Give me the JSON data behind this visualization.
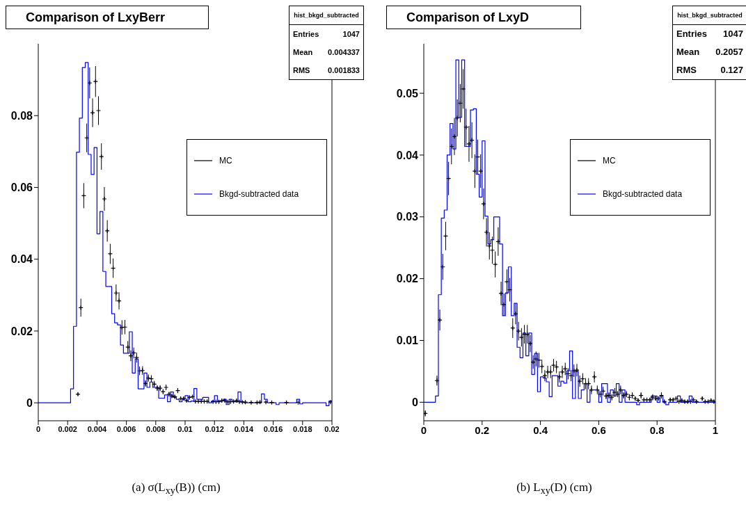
{
  "chart_data": [
    {
      "type": "step",
      "title": "Comparison of LxyBerr",
      "xlabel": "(a) σ(L$_{xy}$(B)) (cm)",
      "annotations": [
        "hist_bkgd_subtracted",
        "Entries",
        "1047",
        "Mean",
        "0.004337",
        "RMS",
        "0.001833"
      ],
      "xlim": [
        0,
        0.02
      ],
      "xticks": [
        0,
        0.002,
        0.004,
        0.006,
        0.008,
        0.01,
        0.012,
        0.014,
        0.016,
        0.018,
        0.02
      ],
      "ylim": [
        -0.005,
        0.1
      ],
      "yticks": [
        0,
        0.02,
        0.04,
        0.06,
        0.08
      ],
      "legend": "right",
      "series": [
        {
          "name": "MC",
          "type": "scatter",
          "marker": "cross",
          "color": "#000000",
          "x": [
            0.0027,
            0.0029,
            0.0031,
            0.0033,
            0.0035,
            0.0037,
            0.0039,
            0.0041,
            0.0043,
            0.0045,
            0.0047,
            0.0049,
            0.0051,
            0.0053,
            0.0055,
            0.0057,
            0.0059,
            0.0061,
            0.0063,
            0.0065,
            0.0067,
            0.0069,
            0.0071,
            0.0073,
            0.0075,
            0.0077,
            0.0079,
            0.0081,
            0.0083,
            0.0085,
            0.0087,
            0.0089,
            0.0091,
            0.0093,
            0.0095,
            0.0097,
            0.0099,
            0.0101,
            0.0103,
            0.0105,
            0.0107,
            0.0109,
            0.0111,
            0.0113,
            0.0115,
            0.0119,
            0.0121,
            0.0123,
            0.0125,
            0.0127,
            0.0129,
            0.0131,
            0.0133,
            0.0135,
            0.0137,
            0.0139,
            0.0141,
            0.0145,
            0.0149,
            0.0151,
            0.0155,
            0.0159,
            0.0169,
            0.0177,
            0.0199
          ],
          "values": [
            0.0024,
            0.0265,
            0.0577,
            0.0738,
            0.0891,
            0.0808,
            0.0895,
            0.0814,
            0.0686,
            0.0568,
            0.0479,
            0.0415,
            0.0375,
            0.0306,
            0.0284,
            0.021,
            0.0211,
            0.0155,
            0.0131,
            0.0139,
            0.0126,
            0.0089,
            0.009,
            0.0054,
            0.0069,
            0.0067,
            0.0052,
            0.0041,
            0.0041,
            0.0031,
            0.0043,
            0.0024,
            0.0019,
            0.0017,
            0.0034,
            0.0012,
            0.0012,
            0.0006,
            0.0015,
            0.0017,
            0.0004,
            0.0004,
            0.0004,
            0.0004,
            0.0004,
            0.0003,
            0.0003,
            0.0003,
            0.0006,
            0.0006,
            0.0003,
            0.0003,
            0.0004,
            0.0006,
            0.0003,
            0.0002,
            0.0002,
            0.0001,
            0.0001,
            0.0002,
            0.0002,
            0.0001,
            0.0001,
            0.0001,
            0.0002
          ],
          "errors": [
            0.0004,
            0.0025,
            0.0035,
            0.004,
            0.0043,
            0.004,
            0.0043,
            0.004,
            0.0037,
            0.0033,
            0.003,
            0.0028,
            0.0027,
            0.0024,
            0.0024,
            0.002,
            0.002,
            0.0017,
            0.0015,
            0.0015,
            0.0014,
            0.0012,
            0.0012,
            0.0009,
            0.001,
            0.001,
            0.0009,
            0.0008,
            0.0008,
            0.0007,
            0.0008,
            0.0006,
            0.0005,
            0.0005,
            0.0007,
            0.0004,
            0.0004,
            0.0003,
            0.0005,
            0.0005,
            0.0002,
            0.0002,
            0.0002,
            0.0002,
            0.0002,
            0.0002,
            0.0002,
            0.0002,
            0.0003,
            0.0003,
            0.0002,
            0.0002,
            0.0002,
            0.0003,
            0.0002,
            0.0002,
            0.0002,
            0.0002,
            0.0002,
            0.0002,
            0.0002,
            0.0002,
            0.0002,
            0.0002,
            0.0002
          ]
        },
        {
          "name": "Bkgd-subtracted data",
          "color": "#0000ff",
          "x": [
            0,
            0.0022,
            0.0024,
            0.0026,
            0.0028,
            0.003,
            0.0032,
            0.0034,
            0.0036,
            0.0038,
            0.004,
            0.0042,
            0.0044,
            0.0046,
            0.0048,
            0.005,
            0.0052,
            0.0054,
            0.0056,
            0.0058,
            0.006,
            0.0062,
            0.0064,
            0.0066,
            0.0068,
            0.007,
            0.0072,
            0.0074,
            0.0076,
            0.0078,
            0.008,
            0.0082,
            0.0084,
            0.0086,
            0.0088,
            0.009,
            0.0092,
            0.0094,
            0.0096,
            0.0098,
            0.01,
            0.0102,
            0.0104,
            0.0106,
            0.0108,
            0.0112,
            0.0116,
            0.0118,
            0.012,
            0.0122,
            0.0126,
            0.0128,
            0.013,
            0.0132,
            0.0136,
            0.0138,
            0.014,
            0.0152,
            0.0154,
            0.0156,
            0.0162,
            0.0164,
            0.0176,
            0.0178,
            0.018,
            0.0196,
            0.0198,
            0.02
          ],
          "values": [
            0,
            0.0039,
            0.0213,
            0.0698,
            0.0793,
            0.0934,
            0.0948,
            0.0692,
            0.0636,
            0.0711,
            0.0471,
            0.0533,
            0.0366,
            0.0324,
            0.0324,
            0.0248,
            0.0223,
            0.0217,
            0.0161,
            0.0138,
            0.0138,
            0.0198,
            0.0083,
            0.0122,
            0.0039,
            0.0039,
            0.0083,
            0.0043,
            0.0058,
            0.0043,
            0.0043,
            0.0013,
            0.0013,
            0.0022,
            0.0003,
            0.003,
            0.0015,
            0.001,
            0.0003,
            0.001,
            0.002,
            0.0003,
            0.0005,
            0.004,
            0.001,
            0.0015,
            0,
            0.0005,
            0.002,
            0.0005,
            0.001,
            -0.0005,
            0.001,
            0.0003,
            0.003,
            0.0003,
            0,
            0.0025,
            0.001,
            0,
            -0.0005,
            0,
            0.001,
            -0.0003,
            0,
            -0.0008,
            0.0005,
            0.0005
          ]
        }
      ]
    },
    {
      "type": "step",
      "title": "Comparison of LxyD",
      "xlabel": "(b) L$_{xy}$(D) (cm)",
      "annotations": [
        "hist_bkgd_subtracted",
        "Entries",
        "1047",
        "Mean",
        "0.2057",
        "RMS",
        "0.127"
      ],
      "xlim": [
        0,
        1
      ],
      "xticks": [
        0,
        0.2,
        0.4,
        0.6,
        0.8,
        1
      ],
      "ylim": [
        -0.003,
        0.058
      ],
      "yticks": [
        0,
        0.01,
        0.02,
        0.03,
        0.04,
        0.05
      ],
      "legend": "right",
      "series": [
        {
          "name": "MC",
          "type": "scatter",
          "marker": "cross",
          "color": "#000000",
          "x": [
            0.005,
            0.045,
            0.055,
            0.065,
            0.075,
            0.085,
            0.095,
            0.105,
            0.115,
            0.125,
            0.135,
            0.145,
            0.155,
            0.165,
            0.175,
            0.185,
            0.195,
            0.205,
            0.215,
            0.225,
            0.235,
            0.245,
            0.255,
            0.265,
            0.275,
            0.285,
            0.295,
            0.305,
            0.315,
            0.325,
            0.335,
            0.345,
            0.355,
            0.365,
            0.375,
            0.385,
            0.395,
            0.405,
            0.415,
            0.425,
            0.435,
            0.445,
            0.455,
            0.465,
            0.475,
            0.485,
            0.495,
            0.505,
            0.515,
            0.525,
            0.535,
            0.545,
            0.555,
            0.565,
            0.575,
            0.585,
            0.595,
            0.605,
            0.615,
            0.625,
            0.635,
            0.645,
            0.655,
            0.665,
            0.675,
            0.685,
            0.695,
            0.705,
            0.715,
            0.725,
            0.735,
            0.745,
            0.755,
            0.765,
            0.775,
            0.785,
            0.795,
            0.805,
            0.815,
            0.825,
            0.845,
            0.855,
            0.865,
            0.875,
            0.885,
            0.895,
            0.905,
            0.915,
            0.925,
            0.935,
            0.955,
            0.965,
            0.975,
            0.985,
            0.995
          ],
          "values": [
            -0.0018,
            0.0035,
            0.0133,
            0.0219,
            0.0269,
            0.0362,
            0.0414,
            0.043,
            0.046,
            0.0484,
            0.0507,
            0.0445,
            0.0418,
            0.0424,
            0.0374,
            0.0397,
            0.0374,
            0.0321,
            0.0275,
            0.0253,
            0.0246,
            0.0223,
            0.026,
            0.0176,
            0.0158,
            0.0195,
            0.0182,
            0.012,
            0.0143,
            0.0115,
            0.0105,
            0.011,
            0.011,
            0.0095,
            0.0065,
            0.007,
            0.0068,
            0.0058,
            0.0043,
            0.0049,
            0.0049,
            0.006,
            0.0057,
            0.0041,
            0.0049,
            0.0054,
            0.0046,
            0.0043,
            0.0051,
            0.0052,
            0.0034,
            0.0038,
            0.003,
            0.003,
            0.002,
            0.0041,
            0.002,
            0.0013,
            0.0018,
            0.001,
            0.0011,
            0.0008,
            0.0016,
            0.0013,
            0.002,
            0.0011,
            0.0013,
            0.0008,
            0.0011,
            0.0006,
            0.0003,
            0.0011,
            0.0004,
            0.0004,
            0.0004,
            0.0008,
            0.0006,
            0.0006,
            0.0011,
            0.0001,
            0.0004,
            0.0004,
            0.0006,
            0.0001,
            0.0003,
            0.0001,
            0.0001,
            0.0001,
            0.0004,
            0.0001,
            0.0006,
            0.0001,
            0.0001,
            0.0003,
            0.0001
          ],
          "errors": [
            0.0005,
            0.0008,
            0.0017,
            0.0021,
            0.0023,
            0.0027,
            0.0029,
            0.003,
            0.003,
            0.0031,
            0.0032,
            0.003,
            0.0029,
            0.0029,
            0.0027,
            0.0028,
            0.0027,
            0.0025,
            0.0023,
            0.0022,
            0.0022,
            0.0021,
            0.0023,
            0.0019,
            0.0018,
            0.002,
            0.0019,
            0.0016,
            0.0017,
            0.0015,
            0.0015,
            0.0015,
            0.0015,
            0.0014,
            0.0011,
            0.0012,
            0.0012,
            0.0011,
            0.0009,
            0.001,
            0.001,
            0.001,
            0.001,
            0.0009,
            0.001,
            0.001,
            0.0009,
            0.0009,
            0.001,
            0.001,
            0.0009,
            0.0009,
            0.0009,
            0.0009,
            0.0007,
            0.0009,
            0.0007,
            0.0005,
            0.0007,
            0.0005,
            0.0005,
            0.0005,
            0.0007,
            0.0005,
            0.0007,
            0.0005,
            0.0005,
            0.0005,
            0.0005,
            0.0003,
            0.0003,
            0.0005,
            0.0003,
            0.0003,
            0.0003,
            0.0005,
            0.0003,
            0.0003,
            0.0005,
            0.0003,
            0.0003,
            0.0003,
            0.0003,
            0.0003,
            0.0003,
            0.0003,
            0.0003,
            0.0003,
            0.0003,
            0.0003,
            0.0003,
            0.0003,
            0.0003,
            0.0003,
            0.0003
          ]
        },
        {
          "name": "Bkgd-subtracted data",
          "color": "#0000ff",
          "x": [
            0,
            0.04,
            0.05,
            0.06,
            0.07,
            0.08,
            0.09,
            0.1,
            0.11,
            0.12,
            0.13,
            0.14,
            0.15,
            0.16,
            0.17,
            0.18,
            0.19,
            0.2,
            0.21,
            0.22,
            0.23,
            0.24,
            0.25,
            0.26,
            0.27,
            0.28,
            0.29,
            0.3,
            0.31,
            0.32,
            0.33,
            0.34,
            0.35,
            0.36,
            0.37,
            0.38,
            0.39,
            0.4,
            0.41,
            0.42,
            0.43,
            0.44,
            0.45,
            0.46,
            0.47,
            0.48,
            0.49,
            0.5,
            0.51,
            0.52,
            0.53,
            0.54,
            0.55,
            0.56,
            0.57,
            0.58,
            0.59,
            0.6,
            0.61,
            0.62,
            0.63,
            0.64,
            0.65,
            0.66,
            0.67,
            0.68,
            0.69,
            0.73,
            0.74,
            0.78,
            0.8,
            0.81,
            0.82,
            0.83,
            0.84,
            0.87,
            0.88,
            0.91,
            0.92,
            1
          ],
          "values": [
            0,
            0.001,
            0.0174,
            0.0298,
            0.0311,
            0.04,
            0.0451,
            0.041,
            0.0554,
            0.0461,
            0.0554,
            0.0414,
            0.0414,
            0.0473,
            0.0475,
            0.0369,
            0.0332,
            0.0423,
            0.0301,
            0.0256,
            0.0263,
            0.03,
            0.03,
            0.0256,
            0.014,
            0.0177,
            0.0219,
            0.014,
            0.016,
            0.0089,
            0.0072,
            0.0112,
            0.0075,
            0.0112,
            0.0045,
            0.0079,
            0.0017,
            0.0041,
            0.0039,
            0.0033,
            0.0009,
            0.0043,
            0.0043,
            0.0026,
            0.0034,
            0.0031,
            0.0051,
            0.0083,
            0.0006,
            0.005,
            0.0006,
            0.002,
            0.003,
            0,
            0.002,
            0.002,
            0.002,
            0,
            0.003,
            0.003,
            0,
            0.002,
            0.001,
            0.003,
            0,
            0.002,
            0,
            -0.0004,
            0,
            0.001,
            0,
            0.001,
            0,
            -0.0004,
            0,
            0.001,
            0,
            0.001,
            0,
            0
          ]
        }
      ]
    }
  ]
}
